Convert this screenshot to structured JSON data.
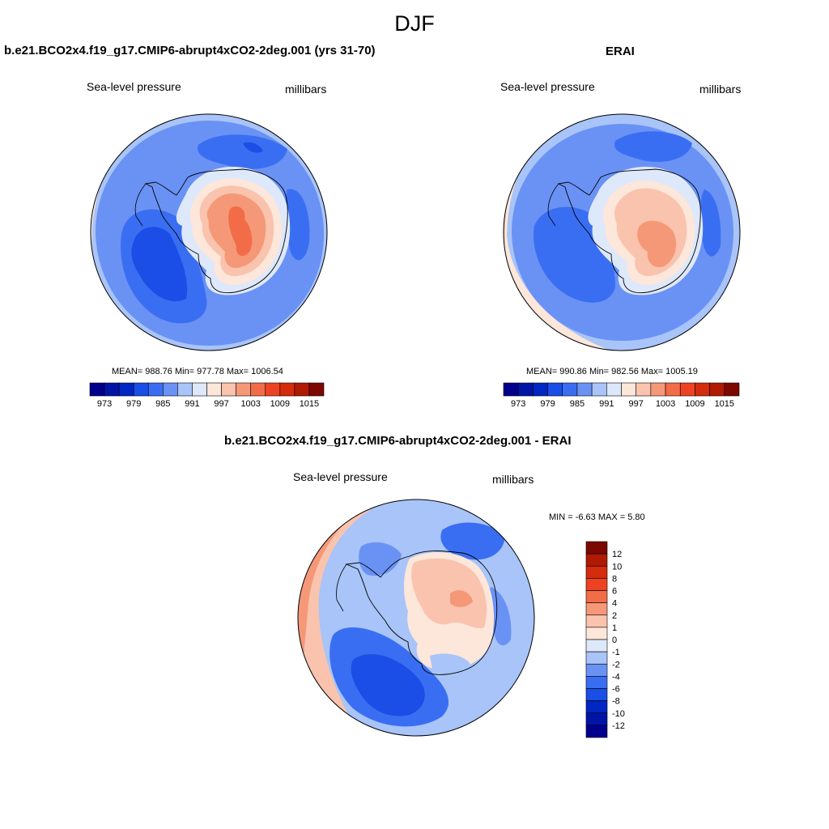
{
  "figure": {
    "title": "DJF"
  },
  "levels": [
    973,
    976,
    979,
    982,
    985,
    988,
    991,
    994,
    997,
    1000,
    1003,
    1006,
    1009,
    1012,
    1015
  ],
  "level_tick_labels": [
    "973",
    "979",
    "985",
    "991",
    "997",
    "1003",
    "1009",
    "1015"
  ],
  "diff_levels": [
    -12,
    -10,
    -8,
    -6,
    -4,
    -2,
    -1,
    0,
    1,
    2,
    4,
    6,
    8,
    10,
    12
  ],
  "diff_tick_labels": [
    "12",
    "10",
    "8",
    "6",
    "4",
    "2",
    "1",
    "0",
    "-1",
    "-2",
    "-4",
    "-6",
    "-8",
    "-10",
    "-12"
  ],
  "colors": [
    "#00008c",
    "#0014a6",
    "#0026c4",
    "#1a4ee6",
    "#3a6ef2",
    "#6a92f4",
    "#a8c4f8",
    "#dde8fb",
    "#fde6da",
    "#f9c3ad",
    "#f59878",
    "#f26c48",
    "#ee4322",
    "#d42c0c",
    "#b01a02",
    "#7c0800"
  ],
  "panels": {
    "model": {
      "title": "b.e21.BCO2x4.f19_g17.CMIP6-abrupt4xCO2-2deg.001 (yrs 31-70)",
      "left_label": "Sea-level pressure",
      "right_label": "millibars",
      "stats": "MEAN= 988.76  Min= 977.78  Max= 1006.54"
    },
    "obs": {
      "title": "ERAI",
      "left_label": "Sea-level pressure",
      "right_label": "millibars",
      "stats": "MEAN= 990.86  Min= 982.56  Max= 1005.19"
    },
    "diff": {
      "title": "b.e21.BCO2x4.f19_g17.CMIP6-abrupt4xCO2-2deg.001 - ERAI",
      "left_label": "Sea-level pressure",
      "right_label": "millibars",
      "stats": "MIN =  -6.63 MAX =   5.80"
    }
  },
  "chart_data": [
    {
      "type": "heatmap",
      "projection": "south-polar-stereographic",
      "title": "b.e21.BCO2x4.f19_g17.CMIP6-abrupt4xCO2-2deg.001 (yrs 31-70)",
      "variable": "Sea-level pressure",
      "units": "millibars",
      "mean": 988.76,
      "min": 977.78,
      "max": 1006.54,
      "colorbar_range": [
        973,
        1015
      ],
      "colorbar_step": 3
    },
    {
      "type": "heatmap",
      "projection": "south-polar-stereographic",
      "title": "ERAI",
      "variable": "Sea-level pressure",
      "units": "millibars",
      "mean": 990.86,
      "min": 982.56,
      "max": 1005.19,
      "colorbar_range": [
        973,
        1015
      ],
      "colorbar_step": 3
    },
    {
      "type": "heatmap",
      "projection": "south-polar-stereographic",
      "title": "b.e21.BCO2x4.f19_g17.CMIP6-abrupt4xCO2-2deg.001 - ERAI",
      "variable": "Sea-level pressure",
      "units": "millibars",
      "min": -6.63,
      "max": 5.8,
      "colorbar_levels": [
        -12,
        -10,
        -8,
        -6,
        -4,
        -2,
        -1,
        0,
        1,
        2,
        4,
        6,
        8,
        10,
        12
      ]
    }
  ]
}
